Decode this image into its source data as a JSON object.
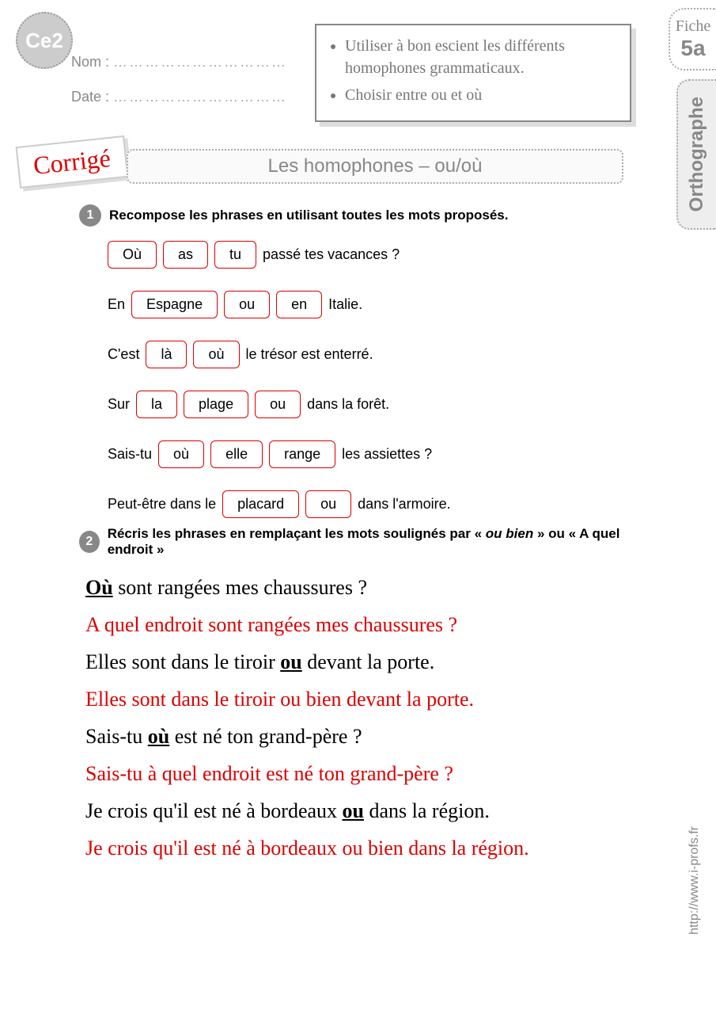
{
  "level": "Ce2",
  "labels": {
    "name": "Nom :",
    "date": "Date :",
    "dots": "……………………………"
  },
  "objectives": [
    "Utiliser à bon escient les différents homophones grammaticaux.",
    "Choisir entre ou et où"
  ],
  "fiche": {
    "label": "Fiche",
    "number": "5a"
  },
  "subject": "Orthographe",
  "corrige": "Corrigé",
  "title": "Les homophones – ou/où",
  "ex1": {
    "num": "1",
    "instr": "Recompose les phrases en utilisant toutes les mots proposés.",
    "rows": [
      {
        "pre": "",
        "boxes": [
          "Où",
          "as",
          "tu"
        ],
        "post": " passé tes vacances ?"
      },
      {
        "pre": "En ",
        "boxes": [
          "Espagne",
          "ou",
          "en"
        ],
        "post": " Italie."
      },
      {
        "pre": "C'est ",
        "boxes": [
          "là",
          "où"
        ],
        "post": " le trésor est enterré."
      },
      {
        "pre": "Sur ",
        "boxes": [
          "la",
          "plage",
          "ou"
        ],
        "post": " dans la forêt."
      },
      {
        "pre": "Sais-tu ",
        "boxes": [
          "où",
          "elle",
          "range"
        ],
        "post": " les assiettes ?"
      },
      {
        "pre": "Peut-être dans le ",
        "boxes": [
          "placard",
          "ou"
        ],
        "post": " dans l'armoire."
      }
    ]
  },
  "ex2": {
    "num": "2",
    "instr_a": "Récris les phrases en remplaçant les mots soulignés par « ",
    "instr_b": "ou bien",
    "instr_c": " » ou «  A quel endroit »",
    "pairs": [
      {
        "q_pre": "",
        "q_u": "Où",
        "q_post": " sont rangées mes chaussures ?",
        "a": "A quel endroit sont rangées mes chaussures ?"
      },
      {
        "q_pre": "Elles sont dans le tiroir ",
        "q_u": "ou",
        "q_post": " devant la porte.",
        "a": "Elles sont dans le tiroir ou bien devant la porte."
      },
      {
        "q_pre": "Sais-tu ",
        "q_u": "où",
        "q_post": " est né ton grand-père ?",
        "a": "Sais-tu à quel endroit est né ton grand-père ?"
      },
      {
        "q_pre": "Je crois qu'il est né à bordeaux ",
        "q_u": "ou",
        "q_post": " dans la région.",
        "a": "Je crois qu'il est né à bordeaux ou bien dans la région."
      }
    ]
  },
  "source": "http://www.i-profs.fr",
  "colors": {
    "accent_red": "#d00",
    "gray": "#888",
    "box_border": "#d00"
  }
}
